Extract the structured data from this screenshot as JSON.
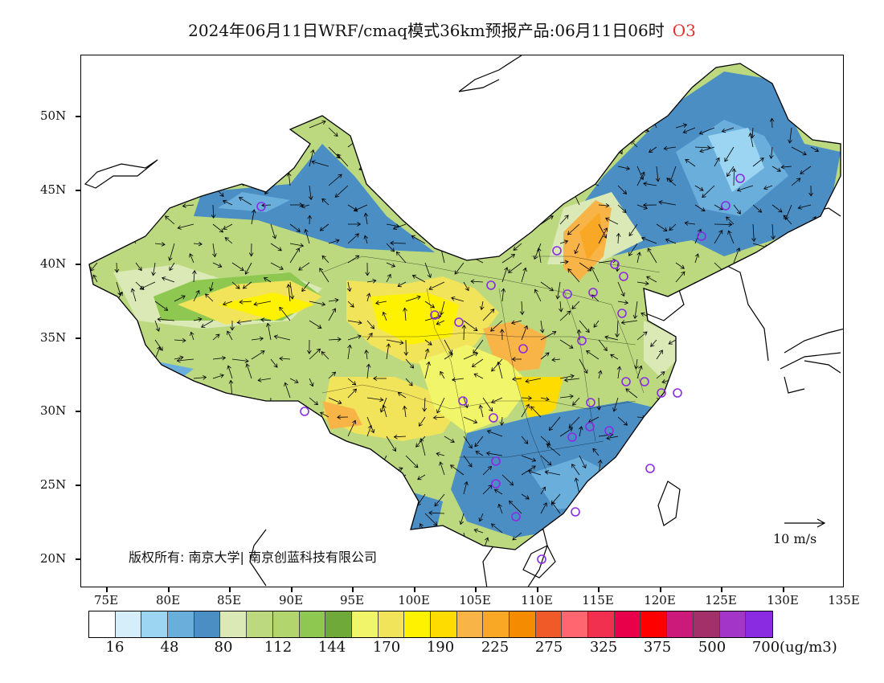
{
  "title": {
    "text": "2024年06月11日WRF/cmaq模式36km预报产品:06月11日06时",
    "species": "O3",
    "species_color": "#e0302a"
  },
  "axes": {
    "lat_labels": [
      "50N",
      "45N",
      "40N",
      "35N",
      "30N",
      "25N",
      "20N"
    ],
    "lon_labels": [
      "75E",
      "80E",
      "85E",
      "90E",
      "95E",
      "100E",
      "105E",
      "110E",
      "115E",
      "120E",
      "125E",
      "130E",
      "135E"
    ]
  },
  "copyright": "版权所有: 南京大学| 南京创蓝科技有限公司",
  "wind_scale_label": "10 m/s",
  "legend": {
    "colors": [
      "#ffffff",
      "#d6eefa",
      "#9bd5f2",
      "#6aaedc",
      "#4b8ec4",
      "#dbe9b7",
      "#bcd97f",
      "#b2d66d",
      "#8fc850",
      "#6ea93a",
      "#f0f56a",
      "#f2e45a",
      "#fef200",
      "#ffdc00",
      "#f9b447",
      "#f9a825",
      "#f58b00",
      "#f05a28",
      "#ff6670",
      "#f0304e",
      "#e8004a",
      "#ff0000",
      "#cc1a7a",
      "#a4306a",
      "#a335c8",
      "#8a2be2"
    ],
    "labels": [
      "16",
      "48",
      "80",
      "112",
      "144",
      "170",
      "190",
      "225",
      "275",
      "325",
      "375",
      "500",
      "700"
    ],
    "unit": "(ug/m3)"
  },
  "stations_color": "#8a2be2"
}
